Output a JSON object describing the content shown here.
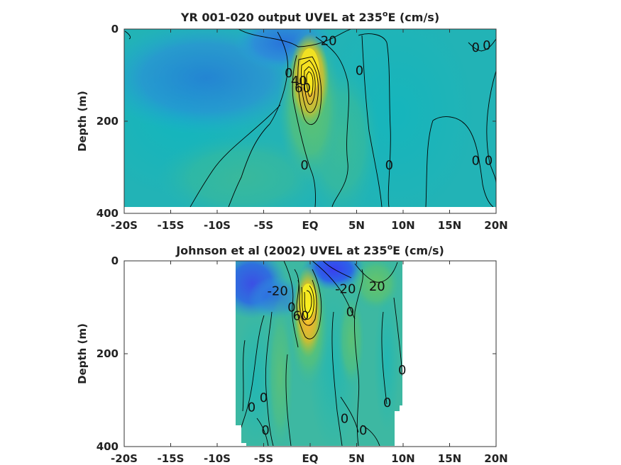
{
  "chart_data": [
    {
      "type": "heatmap",
      "subtype": "filled-contour",
      "title": "YR 001-020 output UVEL at 235",
      "title_superscript": "o",
      "title_suffix": "E (cm/s)",
      "ylabel": "Depth (m)",
      "xlabel": "",
      "xlim": [
        -20,
        20
      ],
      "ylim": [
        0,
        400
      ],
      "y_reversed": true,
      "xticks": [
        -20,
        -15,
        -10,
        -5,
        0,
        5,
        10,
        15,
        20
      ],
      "xtick_labels": [
        "-20S",
        "-15S",
        "-10S",
        "-5S",
        "EQ",
        "5N",
        "10N",
        "15N",
        "20N"
      ],
      "yticks": [
        0,
        200,
        400
      ],
      "ytick_labels": [
        "0",
        "200",
        "400"
      ],
      "data_extent": {
        "lat": [
          -20,
          20
        ],
        "depth": [
          0,
          385
        ]
      },
      "colormap": "parula",
      "clim": [
        -60,
        100
      ],
      "features": [
        {
          "kind": "undercurrent-core",
          "lat": 0.0,
          "depth": 95,
          "value": 100
        },
        {
          "kind": "surface-westward",
          "lat": -8,
          "depth": 10,
          "value": -20
        },
        {
          "kind": "surface-westward",
          "lat": 2,
          "depth": 5,
          "value": -30
        },
        {
          "kind": "subsurface-countercurrent",
          "lat": 9,
          "depth": 60,
          "value": 10
        }
      ],
      "contour_labels": [
        {
          "text": "20",
          "lat": 2.0,
          "depth": 25
        },
        {
          "text": "0",
          "lat": 5.3,
          "depth": 90
        },
        {
          "text": "0",
          "lat": -2.3,
          "depth": 95
        },
        {
          "text": "40",
          "lat": -1.2,
          "depth": 112
        },
        {
          "text": "60",
          "lat": -0.8,
          "depth": 128
        },
        {
          "text": "0",
          "lat": -0.6,
          "depth": 295
        },
        {
          "text": "0",
          "lat": 8.5,
          "depth": 295
        },
        {
          "text": "0",
          "lat": 17.8,
          "depth": 285
        },
        {
          "text": "0",
          "lat": 19.2,
          "depth": 285
        },
        {
          "text": "0",
          "lat": 17.8,
          "depth": 40
        },
        {
          "text": "0",
          "lat": 19.0,
          "depth": 35
        }
      ]
    },
    {
      "type": "heatmap",
      "subtype": "filled-contour",
      "title": "Johnson et al (2002) UVEL at 235",
      "title_superscript": "o",
      "title_suffix": "E (cm/s)",
      "ylabel": "Depth (m)",
      "xlabel": "",
      "xlim": [
        -20,
        20
      ],
      "ylim": [
        0,
        400
      ],
      "y_reversed": true,
      "xticks": [
        -20,
        -15,
        -10,
        -5,
        0,
        5,
        10,
        15,
        20
      ],
      "xtick_labels": [
        "-20S",
        "-15S",
        "-10S",
        "-5S",
        "EQ",
        "5N",
        "10N",
        "15N",
        "20N"
      ],
      "yticks": [
        0,
        200,
        400
      ],
      "ytick_labels": [
        "0",
        "200",
        "400"
      ],
      "data_extent": {
        "lat": [
          -8,
          10
        ],
        "depth": [
          0,
          400
        ]
      },
      "colormap": "parula",
      "clim": [
        -60,
        100
      ],
      "features": [
        {
          "kind": "undercurrent-core",
          "lat": 0.0,
          "depth": 90,
          "value": 100
        },
        {
          "kind": "surface-westward",
          "lat": -6,
          "depth": 20,
          "value": -30
        },
        {
          "kind": "surface-westward",
          "lat": 2.5,
          "depth": 15,
          "value": -50
        },
        {
          "kind": "subsurface-countercurrent",
          "lat": 7,
          "depth": 40,
          "value": 20
        }
      ],
      "contour_labels": [
        {
          "text": "-20",
          "lat": -3.5,
          "depth": 65
        },
        {
          "text": "-20",
          "lat": 3.8,
          "depth": 60
        },
        {
          "text": "20",
          "lat": 7.2,
          "depth": 55
        },
        {
          "text": "0",
          "lat": -2.0,
          "depth": 100
        },
        {
          "text": "0",
          "lat": 4.3,
          "depth": 110
        },
        {
          "text": "60",
          "lat": -1.0,
          "depth": 118
        },
        {
          "text": "0",
          "lat": -6.3,
          "depth": 315
        },
        {
          "text": "0",
          "lat": -5.0,
          "depth": 295
        },
        {
          "text": "0",
          "lat": -4.8,
          "depth": 365
        },
        {
          "text": "0",
          "lat": 3.7,
          "depth": 340
        },
        {
          "text": "0",
          "lat": 5.7,
          "depth": 365
        },
        {
          "text": "0",
          "lat": 8.3,
          "depth": 305
        },
        {
          "text": "0",
          "lat": 9.9,
          "depth": 235
        }
      ]
    }
  ]
}
